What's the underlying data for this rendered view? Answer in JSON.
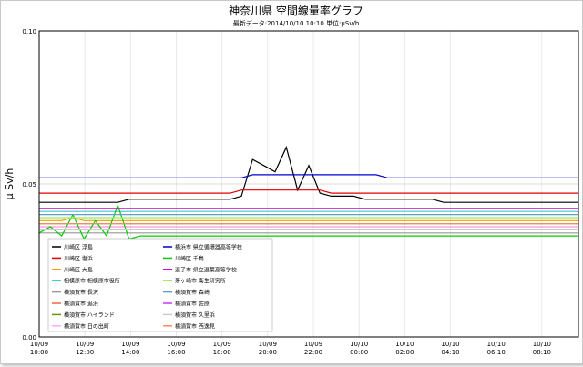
{
  "chart_data": {
    "type": "line",
    "title": "神奈川県 空間線量率グラフ",
    "subtitle": "最新データ:2014/10/10 10:10 単位:μSv/h",
    "ylabel": "μ Sv/h",
    "xlabel": "",
    "ylim": [
      0,
      0.1
    ],
    "yticks": [
      "0.00",
      "0.05",
      "0.10"
    ],
    "xticks": [
      {
        "date": "10/09",
        "time": "10:00"
      },
      {
        "date": "10/09",
        "time": "12:00"
      },
      {
        "date": "10/09",
        "time": "14:00"
      },
      {
        "date": "10/09",
        "time": "16:00"
      },
      {
        "date": "10/09",
        "time": "18:00"
      },
      {
        "date": "10/09",
        "time": "20:00"
      },
      {
        "date": "10/09",
        "time": "22:00"
      },
      {
        "date": "10/10",
        "time": "00:00"
      },
      {
        "date": "10/10",
        "time": "02:00"
      },
      {
        "date": "10/10",
        "time": "04:10"
      },
      {
        "date": "10/10",
        "time": "06:10"
      },
      {
        "date": "10/10",
        "time": "08:10"
      }
    ],
    "grid": true,
    "legend_position": "bottom-left",
    "series": [
      {
        "name": "川崎区 浮島",
        "color": "#000000",
        "values": [
          0.044,
          0.044,
          0.044,
          0.044,
          0.044,
          0.044,
          0.044,
          0.044,
          0.045,
          0.045,
          0.045,
          0.045,
          0.045,
          0.045,
          0.045,
          0.045,
          0.045,
          0.045,
          0.046,
          0.058,
          0.056,
          0.054,
          0.062,
          0.048,
          0.056,
          0.047,
          0.046,
          0.046,
          0.046,
          0.045,
          0.045,
          0.045,
          0.045,
          0.045,
          0.045,
          0.045,
          0.044,
          0.044,
          0.044,
          0.044,
          0.044,
          0.044,
          0.044,
          0.044,
          0.044,
          0.044,
          0.044,
          0.044,
          0.044
        ]
      },
      {
        "name": "川崎区 塩浜",
        "color": "#e00000",
        "values": [
          0.047,
          0.047,
          0.047,
          0.047,
          0.047,
          0.047,
          0.047,
          0.047,
          0.047,
          0.047,
          0.047,
          0.047,
          0.047,
          0.047,
          0.047,
          0.047,
          0.047,
          0.047,
          0.048,
          0.048,
          0.048,
          0.048,
          0.048,
          0.048,
          0.048,
          0.048,
          0.047,
          0.047,
          0.047,
          0.047,
          0.047,
          0.047,
          0.047,
          0.047,
          0.047,
          0.047,
          0.047,
          0.047,
          0.047,
          0.047,
          0.047,
          0.047,
          0.047,
          0.047,
          0.047,
          0.047,
          0.047,
          0.047,
          0.047
        ]
      },
      {
        "name": "川崎区 大島",
        "color": "#ff9900",
        "values": [
          0.038,
          0.038,
          0.038,
          0.039,
          0.038,
          0.038,
          0.038,
          0.038,
          0.038,
          0.038,
          0.038,
          0.038,
          0.038,
          0.038,
          0.038,
          0.038,
          0.038,
          0.038,
          0.038,
          0.038,
          0.038,
          0.038,
          0.038,
          0.038,
          0.038,
          0.038,
          0.038,
          0.038,
          0.038,
          0.038,
          0.038,
          0.038,
          0.038,
          0.038,
          0.038,
          0.038,
          0.038,
          0.038,
          0.038,
          0.038,
          0.038,
          0.038,
          0.038,
          0.038,
          0.038,
          0.038,
          0.038,
          0.038,
          0.038
        ]
      },
      {
        "name": "相模原市 相模原市役所",
        "color": "#33cccc",
        "values": [
          0.041,
          0.041,
          0.041,
          0.041,
          0.041,
          0.041,
          0.041,
          0.041,
          0.041,
          0.041,
          0.041,
          0.041,
          0.041,
          0.041,
          0.041,
          0.041,
          0.041,
          0.041,
          0.041,
          0.041,
          0.041,
          0.041,
          0.041,
          0.041,
          0.041,
          0.041,
          0.041,
          0.041,
          0.041,
          0.041,
          0.041,
          0.041,
          0.041,
          0.041,
          0.041,
          0.041,
          0.041,
          0.041,
          0.041,
          0.041,
          0.041,
          0.041,
          0.041,
          0.041,
          0.041,
          0.041,
          0.041,
          0.041,
          0.041
        ]
      },
      {
        "name": "横須賀市 長沢",
        "color": "#999999",
        "values": [
          0.034,
          0.034,
          0.034,
          0.034,
          0.034,
          0.034,
          0.034,
          0.034,
          0.034,
          0.034,
          0.034,
          0.034,
          0.034,
          0.034,
          0.034,
          0.034,
          0.034,
          0.034,
          0.034,
          0.034,
          0.034,
          0.034,
          0.034,
          0.034,
          0.034,
          0.034,
          0.034,
          0.034,
          0.034,
          0.034,
          0.034,
          0.034,
          0.034,
          0.034,
          0.034,
          0.034,
          0.034,
          0.034,
          0.034,
          0.034,
          0.034,
          0.034,
          0.034,
          0.034,
          0.034,
          0.034,
          0.034,
          0.034,
          0.034
        ]
      },
      {
        "name": "横須賀市 追浜",
        "color": "#ee6644",
        "values": [
          0.036,
          0.036,
          0.036,
          0.036,
          0.036,
          0.036,
          0.036,
          0.036,
          0.036,
          0.036,
          0.036,
          0.036,
          0.036,
          0.036,
          0.036,
          0.036,
          0.036,
          0.036,
          0.036,
          0.036,
          0.036,
          0.036,
          0.036,
          0.036,
          0.036,
          0.036,
          0.036,
          0.036,
          0.036,
          0.036,
          0.036,
          0.036,
          0.036,
          0.036,
          0.036,
          0.036,
          0.036,
          0.036,
          0.036,
          0.036,
          0.036,
          0.036,
          0.036,
          0.036,
          0.036,
          0.036,
          0.036,
          0.036,
          0.036
        ]
      },
      {
        "name": "横須賀市 ハイランド",
        "color": "#669900",
        "values": [
          0.037,
          0.037,
          0.037,
          0.037,
          0.037,
          0.037,
          0.037,
          0.037,
          0.037,
          0.037,
          0.037,
          0.037,
          0.037,
          0.037,
          0.037,
          0.037,
          0.037,
          0.037,
          0.037,
          0.037,
          0.037,
          0.037,
          0.037,
          0.037,
          0.037,
          0.037,
          0.037,
          0.037,
          0.037,
          0.037,
          0.037,
          0.037,
          0.037,
          0.037,
          0.037,
          0.037,
          0.037,
          0.037,
          0.037,
          0.037,
          0.037,
          0.037,
          0.037,
          0.037,
          0.037,
          0.037,
          0.037,
          0.037,
          0.037
        ]
      },
      {
        "name": "横須賀市 日の出町",
        "color": "#ffaaff",
        "values": [
          0.036,
          0.036,
          0.036,
          0.036,
          0.036,
          0.036,
          0.036,
          0.036,
          0.036,
          0.036,
          0.036,
          0.036,
          0.036,
          0.036,
          0.036,
          0.036,
          0.036,
          0.036,
          0.036,
          0.036,
          0.036,
          0.036,
          0.036,
          0.036,
          0.036,
          0.036,
          0.036,
          0.036,
          0.036,
          0.036,
          0.036,
          0.036,
          0.036,
          0.036,
          0.036,
          0.036,
          0.036,
          0.036,
          0.036,
          0.036,
          0.036,
          0.036,
          0.036,
          0.036,
          0.036,
          0.036,
          0.036,
          0.036,
          0.036
        ]
      },
      {
        "name": "横浜市 県立循環器高等学校",
        "color": "#0000cc",
        "values": [
          0.052,
          0.052,
          0.052,
          0.052,
          0.052,
          0.052,
          0.052,
          0.052,
          0.052,
          0.052,
          0.052,
          0.052,
          0.052,
          0.052,
          0.052,
          0.052,
          0.052,
          0.052,
          0.052,
          0.053,
          0.053,
          0.053,
          0.053,
          0.053,
          0.053,
          0.053,
          0.053,
          0.053,
          0.053,
          0.053,
          0.053,
          0.052,
          0.052,
          0.052,
          0.052,
          0.052,
          0.052,
          0.052,
          0.052,
          0.052,
          0.052,
          0.052,
          0.052,
          0.052,
          0.052,
          0.052,
          0.052,
          0.052,
          0.052
        ]
      },
      {
        "name": "川崎区 千鳥",
        "color": "#00cc00",
        "values": [
          0.034,
          0.036,
          0.033,
          0.04,
          0.032,
          0.038,
          0.033,
          0.043,
          0.032,
          0.033,
          0.033,
          0.033,
          0.033,
          0.033,
          0.033,
          0.033,
          0.033,
          0.033,
          0.033,
          0.033,
          0.033,
          0.033,
          0.033,
          0.033,
          0.033,
          0.033,
          0.033,
          0.033,
          0.033,
          0.033,
          0.033,
          0.033,
          0.033,
          0.033,
          0.033,
          0.033,
          0.033,
          0.033,
          0.033,
          0.033,
          0.033,
          0.033,
          0.033,
          0.033,
          0.033,
          0.033,
          0.033,
          0.033,
          0.033
        ]
      },
      {
        "name": "逗子市 県立逗葉高等学校",
        "color": "#cc00cc",
        "values": [
          0.042,
          0.042,
          0.042,
          0.042,
          0.042,
          0.042,
          0.042,
          0.042,
          0.042,
          0.042,
          0.042,
          0.042,
          0.042,
          0.042,
          0.042,
          0.042,
          0.042,
          0.042,
          0.042,
          0.042,
          0.042,
          0.042,
          0.042,
          0.042,
          0.042,
          0.042,
          0.042,
          0.042,
          0.042,
          0.042,
          0.042,
          0.042,
          0.042,
          0.042,
          0.042,
          0.042,
          0.042,
          0.042,
          0.042,
          0.042,
          0.042,
          0.042,
          0.042,
          0.042,
          0.042,
          0.042,
          0.042,
          0.042,
          0.042
        ]
      },
      {
        "name": "茅ヶ崎市 衛生研究所",
        "color": "#99ee66",
        "values": [
          0.039,
          0.039,
          0.039,
          0.039,
          0.039,
          0.039,
          0.039,
          0.039,
          0.039,
          0.039,
          0.039,
          0.039,
          0.039,
          0.039,
          0.039,
          0.039,
          0.039,
          0.039,
          0.039,
          0.039,
          0.039,
          0.039,
          0.039,
          0.039,
          0.039,
          0.039,
          0.039,
          0.039,
          0.039,
          0.039,
          0.039,
          0.039,
          0.039,
          0.039,
          0.039,
          0.039,
          0.039,
          0.039,
          0.039,
          0.039,
          0.039,
          0.039,
          0.039,
          0.039,
          0.039,
          0.039,
          0.039,
          0.039,
          0.039
        ]
      },
      {
        "name": "横須賀市 森崎",
        "color": "#6699cc",
        "values": [
          0.04,
          0.04,
          0.04,
          0.04,
          0.04,
          0.04,
          0.04,
          0.04,
          0.04,
          0.04,
          0.04,
          0.04,
          0.04,
          0.04,
          0.04,
          0.04,
          0.04,
          0.04,
          0.04,
          0.04,
          0.04,
          0.04,
          0.04,
          0.04,
          0.04,
          0.04,
          0.04,
          0.04,
          0.04,
          0.04,
          0.04,
          0.04,
          0.04,
          0.04,
          0.04,
          0.04,
          0.04,
          0.04,
          0.04,
          0.04,
          0.04,
          0.04,
          0.04,
          0.04,
          0.04,
          0.04,
          0.04,
          0.04,
          0.04
        ]
      },
      {
        "name": "横須賀市 佐原",
        "color": "#cc33ff",
        "values": [
          0.035,
          0.035,
          0.035,
          0.035,
          0.035,
          0.035,
          0.035,
          0.035,
          0.035,
          0.035,
          0.035,
          0.035,
          0.035,
          0.035,
          0.035,
          0.035,
          0.035,
          0.035,
          0.035,
          0.035,
          0.035,
          0.035,
          0.035,
          0.035,
          0.035,
          0.035,
          0.035,
          0.035,
          0.035,
          0.035,
          0.035,
          0.035,
          0.035,
          0.035,
          0.035,
          0.035,
          0.035,
          0.035,
          0.035,
          0.035,
          0.035,
          0.035,
          0.035,
          0.035,
          0.035,
          0.035,
          0.035,
          0.035,
          0.035
        ]
      },
      {
        "name": "横須賀市 久里浜",
        "color": "#cccccc",
        "values": [
          0.035,
          0.035,
          0.035,
          0.035,
          0.035,
          0.035,
          0.035,
          0.035,
          0.035,
          0.035,
          0.035,
          0.035,
          0.035,
          0.035,
          0.035,
          0.035,
          0.035,
          0.035,
          0.035,
          0.035,
          0.035,
          0.035,
          0.035,
          0.035,
          0.035,
          0.035,
          0.035,
          0.035,
          0.035,
          0.035,
          0.035,
          0.035,
          0.035,
          0.035,
          0.035,
          0.035,
          0.035,
          0.035,
          0.035,
          0.035,
          0.035,
          0.035,
          0.035,
          0.035,
          0.035,
          0.035,
          0.035,
          0.035,
          0.035
        ]
      },
      {
        "name": "横須賀市 西逸見",
        "color": "#ff8866",
        "values": [
          0.037,
          0.037,
          0.037,
          0.037,
          0.037,
          0.037,
          0.037,
          0.037,
          0.037,
          0.037,
          0.037,
          0.037,
          0.037,
          0.037,
          0.037,
          0.037,
          0.037,
          0.037,
          0.037,
          0.037,
          0.037,
          0.037,
          0.037,
          0.037,
          0.037,
          0.037,
          0.037,
          0.037,
          0.037,
          0.037,
          0.037,
          0.037,
          0.037,
          0.037,
          0.037,
          0.037,
          0.037,
          0.037,
          0.037,
          0.037,
          0.037,
          0.037,
          0.037,
          0.037,
          0.037,
          0.037,
          0.037,
          0.037,
          0.037
        ]
      }
    ]
  }
}
